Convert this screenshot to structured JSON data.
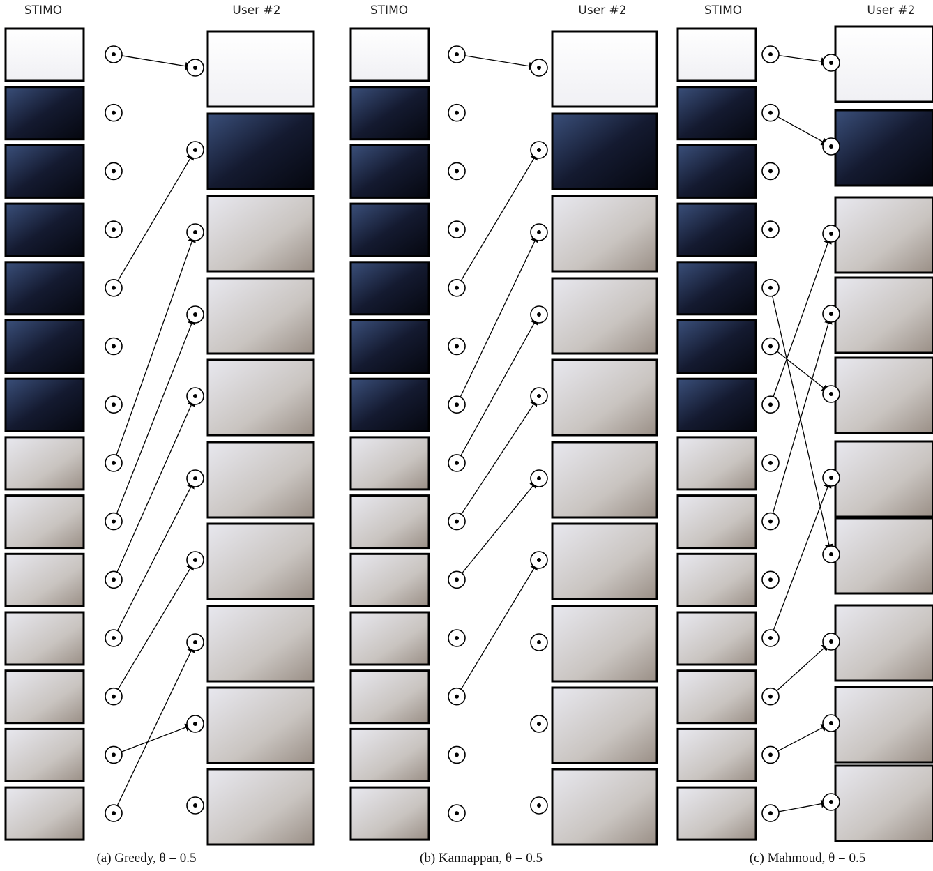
{
  "panels": [
    {
      "stimo_label": "STIMO",
      "user_label": "User #2",
      "caption": "(a) Greedy, θ = 0.5"
    },
    {
      "stimo_label": "STIMO",
      "user_label": "User #2",
      "caption": "(b) Kannappan, θ = 0.5"
    },
    {
      "stimo_label": "STIMO",
      "user_label": "User #2",
      "caption": "(c) Mahmoud, θ = 0.5"
    }
  ]
}
